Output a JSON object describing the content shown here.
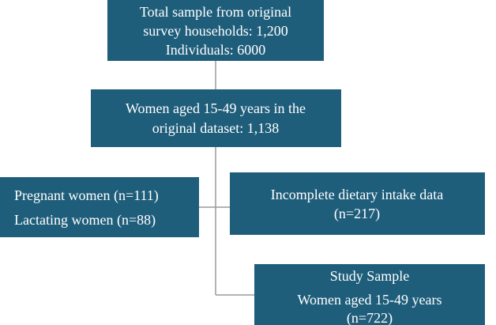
{
  "nodes": [
    {
      "lines": [
        "Total sample from original",
        "survey households: 1,200",
        "Individuals: 6000"
      ]
    },
    {
      "lines": [
        "Women aged 15-49 years in the",
        "original dataset: 1,138"
      ]
    },
    {
      "lines": [
        "Pregnant women (n=111)",
        "Lactating women (n=88)"
      ]
    },
    {
      "lines": [
        "Incomplete dietary intake data",
        "(n=217)"
      ]
    },
    {
      "lines": [
        "Study Sample",
        "Women aged 15-49 years",
        "(n=722)"
      ]
    }
  ]
}
